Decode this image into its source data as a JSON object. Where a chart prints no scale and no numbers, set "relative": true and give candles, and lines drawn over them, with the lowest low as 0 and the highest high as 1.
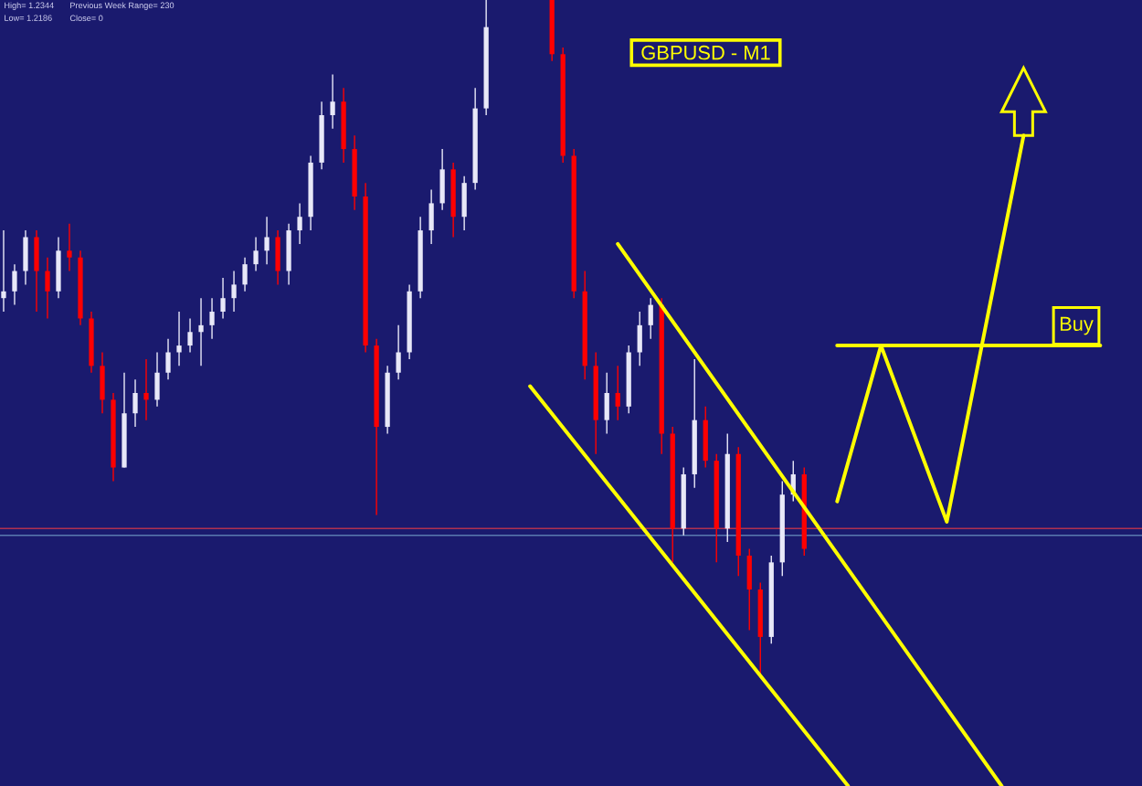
{
  "chart_data": {
    "type": "candlestick",
    "title": "GBPUSD - M1",
    "relative": true,
    "annotations": [
      "High= 1.2344",
      "Previous Week Range= 230",
      "Low= 1.2186",
      "Close= 0"
    ],
    "categories": [
      null,
      null,
      null,
      null,
      null,
      null,
      null,
      null,
      null,
      null,
      null,
      null,
      null,
      null,
      null,
      null,
      null,
      null,
      null,
      null,
      null,
      null,
      null,
      null,
      null,
      null,
      null,
      null,
      null,
      null,
      null,
      null,
      null,
      null,
      null,
      null,
      null,
      null,
      null,
      null,
      null,
      null,
      null,
      null,
      null,
      null,
      null,
      null,
      null,
      null,
      null,
      null,
      null,
      null,
      null,
      null,
      null,
      null,
      null,
      null,
      null,
      null,
      null,
      null,
      null,
      null,
      null,
      null,
      null,
      null,
      null,
      null,
      null,
      null,
      null,
      null,
      null,
      null,
      null,
      null,
      null,
      null,
      null,
      null,
      null,
      null,
      null,
      null,
      null,
      null,
      null,
      null,
      null,
      null,
      null,
      null,
      null,
      null,
      null,
      null,
      null,
      null,
      null,
      null
    ],
    "ohlc": [
      [
        0.56,
        0.66,
        0.54,
        0.57
      ],
      [
        0.57,
        0.61,
        0.55,
        0.6
      ],
      [
        0.6,
        0.66,
        0.58,
        0.65
      ],
      [
        0.65,
        0.66,
        0.54,
        0.6
      ],
      [
        0.6,
        0.62,
        0.53,
        0.57
      ],
      [
        0.57,
        0.65,
        0.56,
        0.63
      ],
      [
        0.63,
        0.67,
        0.6,
        0.62
      ],
      [
        0.62,
        0.63,
        0.52,
        0.53
      ],
      [
        0.53,
        0.54,
        0.45,
        0.46
      ],
      [
        0.46,
        0.48,
        0.39,
        0.41
      ],
      [
        0.41,
        0.42,
        0.29,
        0.31
      ],
      [
        0.31,
        0.45,
        0.31,
        0.39
      ],
      [
        0.39,
        0.44,
        0.37,
        0.42
      ],
      [
        0.42,
        0.47,
        0.38,
        0.41
      ],
      [
        0.41,
        0.48,
        0.4,
        0.45
      ],
      [
        0.45,
        0.5,
        0.44,
        0.48
      ],
      [
        0.48,
        0.54,
        0.46,
        0.49
      ],
      [
        0.49,
        0.53,
        0.48,
        0.51
      ],
      [
        0.51,
        0.56,
        0.46,
        0.52
      ],
      [
        0.52,
        0.56,
        0.5,
        0.54
      ],
      [
        0.54,
        0.59,
        0.53,
        0.56
      ],
      [
        0.56,
        0.6,
        0.54,
        0.58
      ],
      [
        0.58,
        0.62,
        0.57,
        0.61
      ],
      [
        0.61,
        0.65,
        0.6,
        0.63
      ],
      [
        0.63,
        0.68,
        0.61,
        0.65
      ],
      [
        0.65,
        0.66,
        0.58,
        0.6
      ],
      [
        0.6,
        0.67,
        0.58,
        0.66
      ],
      [
        0.66,
        0.7,
        0.64,
        0.68
      ],
      [
        0.68,
        0.77,
        0.66,
        0.76
      ],
      [
        0.76,
        0.85,
        0.75,
        0.83
      ],
      [
        0.83,
        0.89,
        0.81,
        0.85
      ],
      [
        0.85,
        0.87,
        0.76,
        0.78
      ],
      [
        0.78,
        0.8,
        0.69,
        0.71
      ],
      [
        0.71,
        0.73,
        0.48,
        0.49
      ],
      [
        0.49,
        0.5,
        0.24,
        0.37
      ],
      [
        0.37,
        0.46,
        0.36,
        0.45
      ],
      [
        0.45,
        0.52,
        0.44,
        0.48
      ],
      [
        0.48,
        0.58,
        0.47,
        0.57
      ],
      [
        0.57,
        0.68,
        0.56,
        0.66
      ],
      [
        0.66,
        0.72,
        0.64,
        0.7
      ],
      [
        0.7,
        0.78,
        0.69,
        0.75
      ],
      [
        0.75,
        0.76,
        0.65,
        0.68
      ],
      [
        0.68,
        0.74,
        0.66,
        0.73
      ],
      [
        0.73,
        0.87,
        0.72,
        0.84
      ],
      [
        0.84,
        1.0,
        0.83,
        0.96
      ],
      null,
      null,
      null,
      null,
      null,
      [
        1.0,
        1.0,
        0.91,
        0.92
      ],
      [
        0.92,
        0.93,
        0.76,
        0.77
      ],
      [
        0.77,
        0.78,
        0.56,
        0.57
      ],
      [
        0.57,
        0.6,
        0.44,
        0.46
      ],
      [
        0.46,
        0.48,
        0.33,
        0.38
      ],
      [
        0.38,
        0.45,
        0.36,
        0.42
      ],
      [
        0.42,
        0.46,
        0.38,
        0.4
      ],
      [
        0.4,
        0.49,
        0.39,
        0.48
      ],
      [
        0.48,
        0.54,
        0.46,
        0.52
      ],
      [
        0.52,
        0.56,
        0.5,
        0.55
      ],
      [
        0.55,
        0.56,
        0.33,
        0.36
      ],
      [
        0.36,
        0.37,
        0.17,
        0.22
      ],
      [
        0.22,
        0.31,
        0.21,
        0.3
      ],
      [
        0.3,
        0.47,
        0.28,
        0.38
      ],
      [
        0.38,
        0.4,
        0.31,
        0.32
      ],
      [
        0.32,
        0.33,
        0.17,
        0.22
      ],
      [
        0.22,
        0.36,
        0.2,
        0.33
      ],
      [
        0.33,
        0.34,
        0.15,
        0.18
      ],
      [
        0.18,
        0.19,
        0.07,
        0.13
      ],
      [
        0.13,
        0.14,
        0.0,
        0.06
      ],
      [
        0.06,
        0.18,
        0.05,
        0.17
      ],
      [
        0.17,
        0.29,
        0.15,
        0.27
      ],
      [
        0.27,
        0.32,
        0.26,
        0.3
      ],
      [
        0.3,
        0.31,
        0.18,
        0.19
      ],
      null,
      null,
      null,
      null,
      null,
      null,
      null,
      null,
      null,
      null,
      null,
      null,
      null,
      null,
      null,
      null,
      null,
      null,
      null,
      null,
      null,
      null,
      null,
      null,
      null,
      null,
      null,
      null,
      null,
      null
    ],
    "series": [
      {
        "type": "line",
        "color": "#ffff00",
        "values": [
          null,
          null,
          null,
          null,
          null,
          null,
          null,
          null,
          null,
          null,
          null,
          null,
          null,
          null,
          null,
          null,
          null,
          null,
          null,
          null,
          null,
          null,
          null,
          null,
          null,
          null,
          null,
          null,
          null,
          null,
          null,
          null,
          null,
          null,
          null,
          null,
          null,
          null,
          null,
          null,
          null,
          null,
          null,
          null,
          null,
          null,
          null,
          null,
          null,
          null,
          null,
          null,
          null,
          null,
          null,
          null,
          0.64,
          null,
          null,
          null,
          null,
          null,
          null,
          null,
          null,
          null,
          null,
          null,
          null,
          null,
          null,
          null,
          null,
          null,
          null,
          null,
          null,
          null,
          null,
          null,
          null,
          null,
          null,
          null,
          null,
          null,
          null,
          null,
          null,
          null,
          null,
          -0.16,
          null,
          null,
          null,
          null,
          null,
          null,
          null,
          null,
          null,
          null,
          null,
          null
        ]
      },
      {
        "type": "line",
        "color": "#ffff00",
        "values": [
          null,
          null,
          null,
          null,
          null,
          null,
          null,
          null,
          null,
          null,
          null,
          null,
          null,
          null,
          null,
          null,
          null,
          null,
          null,
          null,
          null,
          null,
          null,
          null,
          null,
          null,
          null,
          null,
          null,
          null,
          null,
          null,
          null,
          null,
          null,
          null,
          null,
          null,
          null,
          null,
          null,
          null,
          null,
          null,
          null,
          null,
          null,
          null,
          0.43,
          null,
          null,
          null,
          null,
          null,
          null,
          null,
          null,
          null,
          null,
          null,
          null,
          null,
          null,
          null,
          null,
          null,
          null,
          null,
          null,
          null,
          null,
          null,
          null,
          null,
          null,
          null,
          null,
          -0.16,
          null,
          null,
          null,
          null,
          null,
          null,
          null,
          null,
          null,
          null,
          null,
          null,
          null,
          null,
          null,
          null,
          null,
          null,
          null,
          null,
          null,
          null,
          null,
          null,
          null,
          null
        ]
      },
      {
        "type": "line",
        "name": "Buy",
        "color": "#ffff00",
        "values": [
          null,
          null,
          null,
          null,
          null,
          null,
          null,
          null,
          null,
          null,
          null,
          null,
          null,
          null,
          null,
          null,
          null,
          null,
          null,
          null,
          null,
          null,
          null,
          null,
          null,
          null,
          null,
          null,
          null,
          null,
          null,
          null,
          null,
          null,
          null,
          null,
          null,
          null,
          null,
          null,
          null,
          null,
          null,
          null,
          null,
          null,
          null,
          null,
          null,
          null,
          null,
          null,
          null,
          null,
          null,
          null,
          null,
          null,
          null,
          null,
          null,
          null,
          null,
          null,
          null,
          null,
          null,
          null,
          null,
          null,
          null,
          null,
          null,
          null,
          null,
          null,
          0.49,
          null,
          null,
          null,
          null,
          null,
          null,
          null,
          null,
          null,
          null,
          null,
          null,
          null,
          null,
          null,
          null,
          null,
          null,
          null,
          null,
          null,
          null,
          null,
          0.49,
          null,
          null,
          null
        ]
      },
      {
        "type": "line",
        "color": "#ffff00",
        "values": [
          null,
          null,
          null,
          null,
          null,
          null,
          null,
          null,
          null,
          null,
          null,
          null,
          null,
          null,
          null,
          null,
          null,
          null,
          null,
          null,
          null,
          null,
          null,
          null,
          null,
          null,
          null,
          null,
          null,
          null,
          null,
          null,
          null,
          null,
          null,
          null,
          null,
          null,
          null,
          null,
          null,
          null,
          null,
          null,
          null,
          null,
          null,
          null,
          null,
          null,
          null,
          null,
          null,
          null,
          null,
          null,
          null,
          null,
          null,
          null,
          null,
          null,
          null,
          null,
          null,
          null,
          null,
          null,
          null,
          null,
          null,
          null,
          null,
          null,
          null,
          null,
          0.26,
          null,
          null,
          null,
          0.49,
          null,
          null,
          null,
          null,
          null,
          0.23,
          null,
          null,
          null,
          null,
          null,
          null,
          0.8,
          null,
          null,
          null,
          null,
          null,
          null,
          null,
          null,
          null,
          null
        ]
      }
    ],
    "ref_lines": [
      {
        "axis": "y",
        "value": 0.22,
        "color": "#b03050"
      },
      {
        "axis": "y",
        "value": 0.21,
        "color": "#5a7ab0"
      }
    ]
  }
}
